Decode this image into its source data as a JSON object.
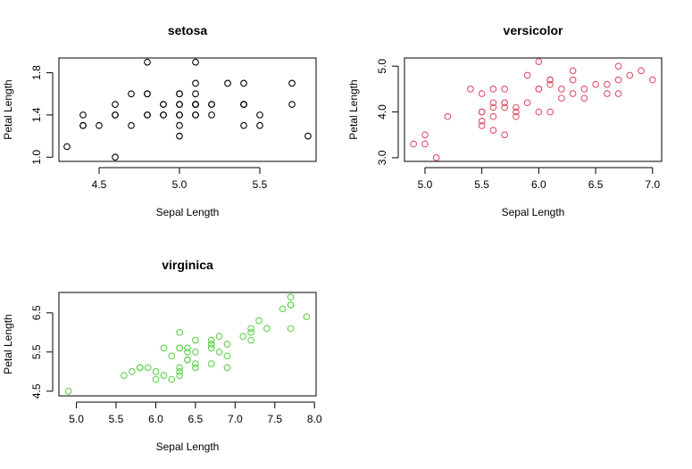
{
  "chart_data": [
    {
      "type": "scatter",
      "title": "setosa",
      "xlabel": "Sepal Length",
      "ylabel": "Petal Length",
      "color": "#000000",
      "xlim": [
        4.25,
        5.85
      ],
      "ylim": [
        0.96,
        1.94
      ],
      "xticks": [
        4.5,
        5.0,
        5.5
      ],
      "xtick_labels": [
        "4.5",
        "5.0",
        "5.5"
      ],
      "yticks": [
        1.0,
        1.4,
        1.8
      ],
      "ytick_labels": [
        "1.0",
        "1.4",
        "1.8"
      ],
      "x": [
        4.3,
        4.4,
        4.4,
        4.4,
        4.5,
        4.6,
        4.6,
        4.6,
        4.6,
        4.7,
        4.7,
        4.8,
        4.8,
        4.8,
        4.8,
        4.8,
        4.9,
        4.9,
        4.9,
        4.9,
        5.0,
        5.0,
        5.0,
        5.0,
        5.0,
        5.0,
        5.0,
        5.0,
        5.1,
        5.1,
        5.1,
        5.1,
        5.1,
        5.1,
        5.1,
        5.1,
        5.1,
        5.2,
        5.2,
        5.2,
        5.3,
        5.4,
        5.4,
        5.4,
        5.4,
        5.4,
        5.5,
        5.5,
        5.7,
        5.7,
        5.8
      ],
      "y": [
        1.1,
        1.4,
        1.3,
        1.3,
        1.3,
        1.4,
        1.5,
        1.4,
        1.0,
        1.3,
        1.6,
        1.6,
        1.4,
        1.6,
        1.9,
        1.4,
        1.4,
        1.5,
        1.4,
        1.5,
        1.4,
        1.5,
        1.6,
        1.4,
        1.2,
        1.3,
        1.6,
        1.5,
        1.4,
        1.5,
        1.5,
        1.7,
        1.5,
        1.9,
        1.6,
        1.4,
        1.5,
        1.5,
        1.4,
        1.5,
        1.7,
        1.5,
        1.3,
        1.7,
        1.5,
        1.5,
        1.4,
        1.3,
        1.5,
        1.7,
        1.2
      ]
    },
    {
      "type": "scatter",
      "title": "versicolor",
      "xlabel": "Sepal Length",
      "ylabel": "Petal Length",
      "color": "#DF536B",
      "xlim": [
        4.82,
        7.08
      ],
      "ylim": [
        2.92,
        5.18
      ],
      "xticks": [
        5.0,
        5.5,
        6.0,
        6.5,
        7.0
      ],
      "xtick_labels": [
        "5.0",
        "5.5",
        "6.0",
        "6.5",
        "7.0"
      ],
      "yticks": [
        3.0,
        4.0,
        5.0
      ],
      "ytick_labels": [
        "3.0",
        "4.0",
        "5.0"
      ],
      "x": [
        4.9,
        5.0,
        5.0,
        5.1,
        5.2,
        5.4,
        5.5,
        5.5,
        5.5,
        5.5,
        5.5,
        5.6,
        5.6,
        5.6,
        5.6,
        5.6,
        5.7,
        5.7,
        5.7,
        5.7,
        5.7,
        5.8,
        5.8,
        5.8,
        5.9,
        5.9,
        6.0,
        6.0,
        6.0,
        6.0,
        6.1,
        6.1,
        6.1,
        6.1,
        6.2,
        6.2,
        6.3,
        6.3,
        6.3,
        6.4,
        6.4,
        6.5,
        6.6,
        6.6,
        6.7,
        6.7,
        6.7,
        6.8,
        6.9,
        7.0
      ],
      "y": [
        3.3,
        3.5,
        3.3,
        3.0,
        3.9,
        4.5,
        4.0,
        4.4,
        3.7,
        3.8,
        4.0,
        3.6,
        4.1,
        4.2,
        4.5,
        3.9,
        4.5,
        4.1,
        3.5,
        4.2,
        4.2,
        4.1,
        3.9,
        4.0,
        4.8,
        4.2,
        5.1,
        4.5,
        4.0,
        4.5,
        4.7,
        4.0,
        4.6,
        4.7,
        4.3,
        4.5,
        4.9,
        4.7,
        4.4,
        4.5,
        4.3,
        4.6,
        4.4,
        4.6,
        4.4,
        4.7,
        5.0,
        4.8,
        4.9,
        4.7
      ]
    },
    {
      "type": "scatter",
      "title": "virginica",
      "xlabel": "Sepal Length",
      "ylabel": "Petal Length",
      "color": "#61D04F",
      "xlim": [
        4.78,
        8.02
      ],
      "ylim": [
        4.38,
        7.02
      ],
      "xticks": [
        5.0,
        5.5,
        6.0,
        6.5,
        7.0,
        7.5,
        8.0
      ],
      "xtick_labels": [
        "5.0",
        "5.5",
        "6.0",
        "6.5",
        "7.0",
        "7.5",
        "8.0"
      ],
      "yticks": [
        4.5,
        5.5,
        6.5
      ],
      "ytick_labels": [
        "4.5",
        "5.5",
        "6.5"
      ],
      "x": [
        4.9,
        5.6,
        5.7,
        5.8,
        5.8,
        5.8,
        5.9,
        6.0,
        6.0,
        6.1,
        6.1,
        6.2,
        6.2,
        6.3,
        6.3,
        6.3,
        6.3,
        6.3,
        6.3,
        6.4,
        6.4,
        6.4,
        6.4,
        6.4,
        6.5,
        6.5,
        6.5,
        6.5,
        6.7,
        6.7,
        6.7,
        6.7,
        6.7,
        6.8,
        6.8,
        6.9,
        6.9,
        6.9,
        7.1,
        7.2,
        7.2,
        7.2,
        7.3,
        7.4,
        7.6,
        7.7,
        7.7,
        7.7,
        7.7,
        7.9
      ],
      "y": [
        4.5,
        4.9,
        5.0,
        5.1,
        5.1,
        5.1,
        5.1,
        4.8,
        5.0,
        5.6,
        4.9,
        5.4,
        4.8,
        6.0,
        5.1,
        5.6,
        5.6,
        4.9,
        5.0,
        5.3,
        5.5,
        5.6,
        5.3,
        5.3,
        5.8,
        5.5,
        5.1,
        5.2,
        5.8,
        5.7,
        5.6,
        5.7,
        5.2,
        5.9,
        5.5,
        5.4,
        5.7,
        5.1,
        5.9,
        6.1,
        5.8,
        6.0,
        6.3,
        6.1,
        6.6,
        6.7,
        6.9,
        6.7,
        6.1,
        6.4
      ]
    }
  ]
}
